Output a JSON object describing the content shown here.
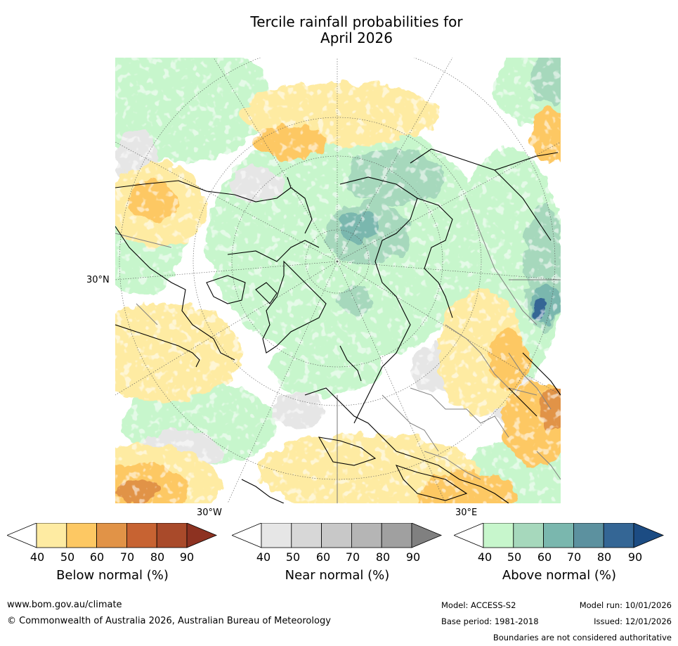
{
  "title_line1": "Tercile rainfall probabilities for",
  "title_line2": "April 2026",
  "map": {
    "projection": "north-polar-stereographic",
    "labels": {
      "lat30": "30°N",
      "lon_w": "30°W",
      "lon_e": "30°E"
    },
    "background_color": "#ffffff",
    "coastline_color": "#000000",
    "border_color": "#808080"
  },
  "colorbars": [
    {
      "id": "below",
      "label": "Below normal (%)",
      "ticks": [
        "40",
        "50",
        "60",
        "70",
        "80",
        "90"
      ],
      "colors": [
        "#ffffff",
        "#feeba2",
        "#fdc863",
        "#e19347",
        "#c76332",
        "#a94a2a",
        "#8d3221"
      ]
    },
    {
      "id": "near",
      "label": "Near normal (%)",
      "ticks": [
        "40",
        "50",
        "60",
        "70",
        "80",
        "90"
      ],
      "colors": [
        "#ffffff",
        "#e6e6e6",
        "#d7d7d7",
        "#c8c8c8",
        "#b5b5b5",
        "#a0a0a0",
        "#808080"
      ]
    },
    {
      "id": "above",
      "label": "Above normal (%)",
      "ticks": [
        "40",
        "50",
        "60",
        "70",
        "80",
        "90"
      ],
      "colors": [
        "#ffffff",
        "#c7f6cc",
        "#a6d8bc",
        "#7ab7ae",
        "#5c919f",
        "#346695",
        "#1c4c83"
      ]
    }
  ],
  "footer": {
    "url": "www.bom.gov.au/climate",
    "copyright": "© Commonwealth of Australia 2026, Australian Bureau of Meteorology",
    "model": "Model: ACCESS-S2",
    "model_run": "Model run: 10/01/2026",
    "base_period": "Base period: 1981-2018",
    "issued": "Issued: 12/01/2026",
    "disclaimer": "Boundaries are not considered authoritative"
  }
}
